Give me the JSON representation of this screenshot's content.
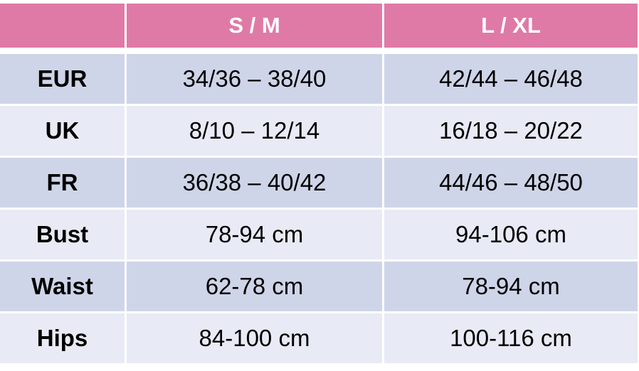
{
  "table": {
    "header": [
      "S / M",
      "L / XL"
    ],
    "rows": [
      [
        "EUR",
        "34/36 – 38/40",
        "42/44 – 46/48"
      ],
      [
        "UK",
        "8/10 – 12/14",
        "16/18 – 20/22"
      ],
      [
        "FR",
        "36/38 – 40/42",
        "44/46 – 48/50"
      ],
      [
        "Bust",
        "78-94 cm",
        "94-106 cm"
      ],
      [
        "Waist",
        "62-78 cm",
        "78-94 cm"
      ],
      [
        "Hips",
        "84-100 cm",
        "100-116 cm"
      ]
    ]
  }
}
